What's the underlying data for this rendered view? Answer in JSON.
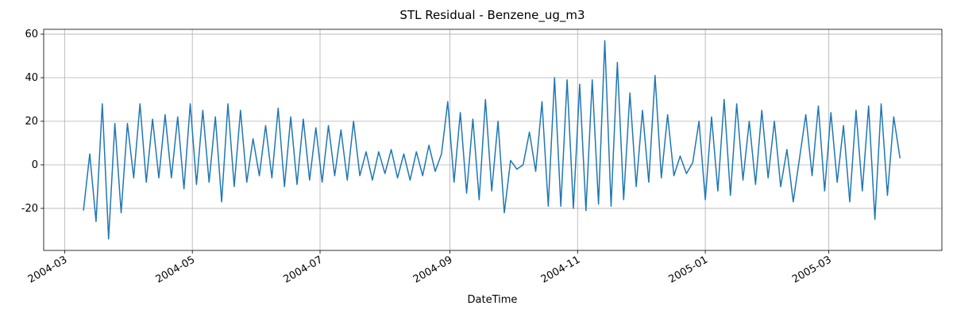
{
  "chart_data": {
    "type": "line",
    "title": "STL Residual - Benzene_ug_m3",
    "xlabel": "DateTime",
    "grid": true,
    "xlim": [
      "2004-02-20",
      "2005-04-24"
    ],
    "xticks": [
      {
        "value": "2004-03-01",
        "label": "2004-03"
      },
      {
        "value": "2004-05-01",
        "label": "2004-05"
      },
      {
        "value": "2004-07-01",
        "label": "2004-07"
      },
      {
        "value": "2004-09-01",
        "label": "2004-09"
      },
      {
        "value": "2004-11-01",
        "label": "2004-11"
      },
      {
        "value": "2005-01-01",
        "label": "2005-01"
      },
      {
        "value": "2005-03-01",
        "label": "2005-03"
      }
    ],
    "ylim": [
      -39.3,
      62.2
    ],
    "yticks": [
      -20,
      0,
      20,
      40,
      60
    ],
    "x": [
      "2004-03-10",
      "2004-03-13",
      "2004-03-16",
      "2004-03-19",
      "2004-03-22",
      "2004-03-25",
      "2004-03-28",
      "2004-03-31",
      "2004-04-03",
      "2004-04-06",
      "2004-04-09",
      "2004-04-12",
      "2004-04-15",
      "2004-04-18",
      "2004-04-21",
      "2004-04-24",
      "2004-04-27",
      "2004-04-30",
      "2004-05-03",
      "2004-05-06",
      "2004-05-09",
      "2004-05-12",
      "2004-05-15",
      "2004-05-18",
      "2004-05-21",
      "2004-05-24",
      "2004-05-27",
      "2004-05-30",
      "2004-06-02",
      "2004-06-05",
      "2004-06-08",
      "2004-06-11",
      "2004-06-14",
      "2004-06-17",
      "2004-06-20",
      "2004-06-23",
      "2004-06-26",
      "2004-06-29",
      "2004-07-02",
      "2004-07-05",
      "2004-07-08",
      "2004-07-11",
      "2004-07-14",
      "2004-07-17",
      "2004-07-20",
      "2004-07-23",
      "2004-07-26",
      "2004-07-29",
      "2004-08-01",
      "2004-08-04",
      "2004-08-07",
      "2004-08-10",
      "2004-08-13",
      "2004-08-16",
      "2004-08-19",
      "2004-08-22",
      "2004-08-25",
      "2004-08-28",
      "2004-08-31",
      "2004-09-03",
      "2004-09-06",
      "2004-09-09",
      "2004-09-12",
      "2004-09-15",
      "2004-09-18",
      "2004-09-21",
      "2004-09-24",
      "2004-09-27",
      "2004-09-30",
      "2004-10-03",
      "2004-10-06",
      "2004-10-09",
      "2004-10-12",
      "2004-10-15",
      "2004-10-18",
      "2004-10-21",
      "2004-10-24",
      "2004-10-27",
      "2004-10-30",
      "2004-11-02",
      "2004-11-05",
      "2004-11-08",
      "2004-11-11",
      "2004-11-14",
      "2004-11-17",
      "2004-11-20",
      "2004-11-23",
      "2004-11-26",
      "2004-11-29",
      "2004-12-02",
      "2004-12-05",
      "2004-12-08",
      "2004-12-11",
      "2004-12-14",
      "2004-12-17",
      "2004-12-20",
      "2004-12-23",
      "2004-12-26",
      "2004-12-29",
      "2005-01-01",
      "2005-01-04",
      "2005-01-07",
      "2005-01-10",
      "2005-01-13",
      "2005-01-16",
      "2005-01-19",
      "2005-01-22",
      "2005-01-25",
      "2005-01-28",
      "2005-01-31",
      "2005-02-03",
      "2005-02-06",
      "2005-02-09",
      "2005-02-12",
      "2005-02-15",
      "2005-02-18",
      "2005-02-21",
      "2005-02-24",
      "2005-02-27",
      "2005-03-02",
      "2005-03-05",
      "2005-03-08",
      "2005-03-11",
      "2005-03-14",
      "2005-03-17",
      "2005-03-20",
      "2005-03-23",
      "2005-03-26",
      "2005-03-29",
      "2005-04-01",
      "2005-04-04"
    ],
    "series": [
      {
        "color": "#1f77b4",
        "values": [
          -21,
          5,
          -26,
          28,
          -34,
          19,
          -22,
          19,
          -6,
          28,
          -8,
          21,
          -6,
          23,
          -6,
          22,
          -11,
          28,
          -9,
          25,
          -8,
          22,
          -17,
          28,
          -10,
          25,
          -8,
          12,
          -5,
          18,
          -6,
          26,
          -10,
          22,
          -9,
          21,
          -7,
          17,
          -8,
          18,
          -5,
          16,
          -7,
          20,
          -5,
          6,
          -7,
          6,
          -4,
          7,
          -6,
          5,
          -7,
          6,
          -5,
          9,
          -3,
          5,
          29,
          -8,
          24,
          -13,
          21,
          -16,
          30,
          -12,
          20,
          -22,
          2,
          -2,
          0,
          15,
          -3,
          29,
          -19,
          40,
          -19,
          39,
          -20,
          37,
          -21,
          39,
          -18,
          57,
          -19,
          47,
          -16,
          33,
          -10,
          25,
          -8,
          41,
          -6,
          23,
          -5,
          4,
          -4,
          1,
          20,
          -16,
          22,
          -12,
          30,
          -14,
          28,
          -7,
          20,
          -9,
          25,
          -6,
          20,
          -10,
          7,
          -17,
          3,
          23,
          -5,
          27,
          -12,
          24,
          -8,
          18,
          -17,
          25,
          -12,
          27,
          -25,
          28,
          -14,
          22,
          3
        ]
      }
    ]
  }
}
